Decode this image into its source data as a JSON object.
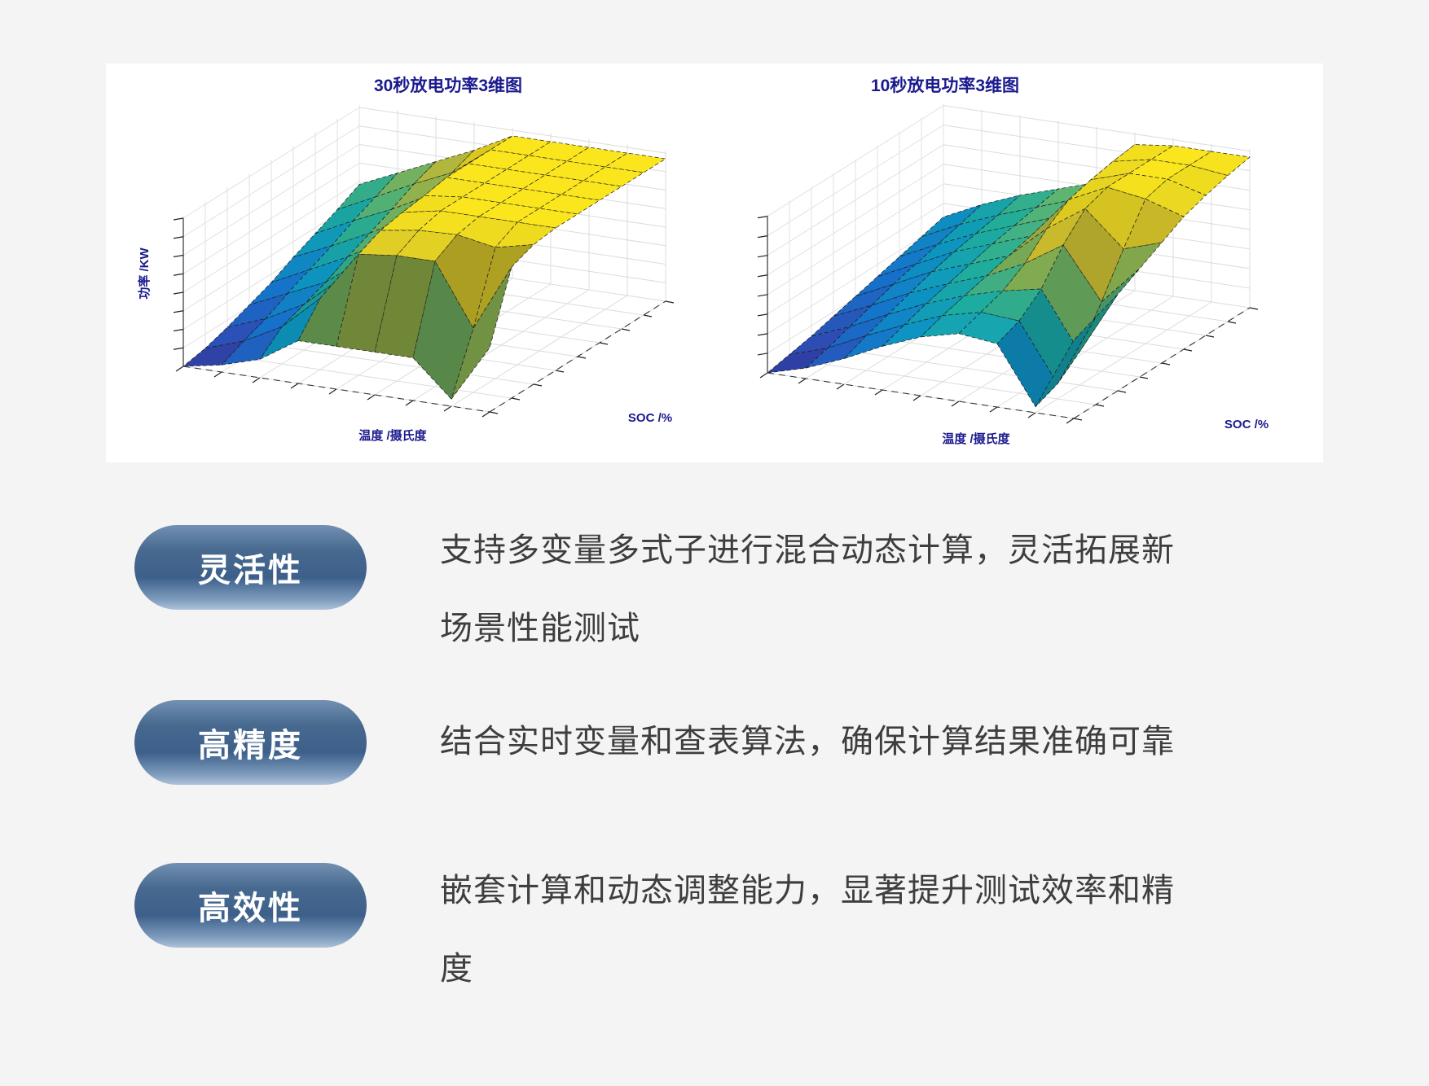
{
  "page": {
    "background": "#f4f4f4",
    "panel_background": "#ffffff"
  },
  "colors": {
    "chart_label_navy": "#1a1a8f",
    "pill_gradient_top": "#7290b2",
    "pill_gradient_mid": "#3d608b",
    "pill_gradient_bottom": "#aec2d8",
    "pill_text": "#ffffff",
    "description_text": "#3e3e3e",
    "surface_colormap": [
      [
        0.0,
        "#352a87"
      ],
      [
        0.14,
        "#2f52c0"
      ],
      [
        0.28,
        "#1779d8"
      ],
      [
        0.42,
        "#0d9ecc"
      ],
      [
        0.54,
        "#20b5a2"
      ],
      [
        0.66,
        "#62bd76"
      ],
      [
        0.78,
        "#a5bf4c"
      ],
      [
        0.88,
        "#d9c832"
      ],
      [
        1.0,
        "#fbe61e"
      ]
    ]
  },
  "chart_data": [
    {
      "type": "surface",
      "title": "30秒放电功率3维图",
      "xlabel": "温度 /摄氏度",
      "ylabel": "SOC /%",
      "zlabel": "功率 /KW",
      "tick_labels_visible": false,
      "grid_note": "9x9 normalized heights z in [0,1]; rows = SOC front(low)→back(high); cols = temperature left(low)→right(high); high plateau with notch at front-right",
      "z": [
        [
          0.0,
          0.05,
          0.13,
          0.3,
          0.3,
          0.3,
          0.3,
          0.05,
          0.45
        ],
        [
          0.03,
          0.12,
          0.26,
          0.5,
          0.85,
          0.88,
          0.88,
          0.45,
          0.92
        ],
        [
          0.08,
          0.18,
          0.32,
          0.55,
          0.92,
          0.96,
          0.97,
          0.92,
          0.98
        ],
        [
          0.14,
          0.26,
          0.38,
          0.58,
          0.95,
          1.0,
          1.0,
          1.0,
          1.0
        ],
        [
          0.2,
          0.33,
          0.46,
          0.62,
          0.97,
          1.0,
          1.0,
          1.0,
          1.0
        ],
        [
          0.28,
          0.4,
          0.53,
          0.68,
          1.0,
          1.0,
          1.0,
          1.0,
          1.0
        ],
        [
          0.35,
          0.48,
          0.6,
          0.74,
          1.0,
          1.0,
          1.0,
          1.0,
          1.0
        ],
        [
          0.42,
          0.55,
          0.68,
          0.8,
          1.0,
          1.0,
          1.0,
          1.0,
          1.0
        ],
        [
          0.5,
          0.62,
          0.74,
          0.86,
          1.0,
          1.0,
          1.0,
          1.0,
          1.0
        ]
      ]
    },
    {
      "type": "surface",
      "title": "10秒放电功率3维图",
      "xlabel": "温度 /摄氏度",
      "ylabel": "SOC /%",
      "zlabel": "",
      "tick_labels_visible": false,
      "grid_note": "9x9 normalized heights; rising blue slope, mid teal hump, yellow peak at back-right, deep valley at front-right then teal ridge at right edge",
      "z": [
        [
          0.0,
          0.07,
          0.17,
          0.29,
          0.39,
          0.45,
          0.42,
          0.04,
          0.52
        ],
        [
          0.03,
          0.11,
          0.23,
          0.34,
          0.44,
          0.5,
          0.48,
          0.1,
          0.58
        ],
        [
          0.06,
          0.16,
          0.28,
          0.39,
          0.48,
          0.55,
          0.6,
          0.22,
          0.64
        ],
        [
          0.1,
          0.21,
          0.33,
          0.43,
          0.52,
          0.64,
          0.8,
          0.46,
          0.72
        ],
        [
          0.14,
          0.26,
          0.38,
          0.47,
          0.56,
          0.78,
          0.95,
          0.72,
          0.8
        ],
        [
          0.18,
          0.3,
          0.42,
          0.51,
          0.6,
          0.88,
          1.0,
          0.96,
          0.88
        ],
        [
          0.22,
          0.34,
          0.45,
          0.54,
          0.63,
          0.92,
          1.0,
          1.0,
          0.93
        ],
        [
          0.26,
          0.38,
          0.48,
          0.57,
          0.66,
          0.95,
          1.0,
          1.0,
          0.97
        ],
        [
          0.3,
          0.42,
          0.52,
          0.6,
          0.68,
          0.97,
          1.0,
          1.0,
          1.0
        ]
      ]
    }
  ],
  "features": [
    {
      "tag": "灵活性",
      "lines": [
        "支持多变量多式子进行混合动态计算，灵活拓展新",
        "场景性能测试"
      ]
    },
    {
      "tag": "高精度",
      "lines": [
        "结合实时变量和查表算法，确保计算结果准确可靠"
      ]
    },
    {
      "tag": "高效性",
      "lines": [
        "嵌套计算和动态调整能力，显著提升测试效率和精",
        "度"
      ]
    }
  ]
}
